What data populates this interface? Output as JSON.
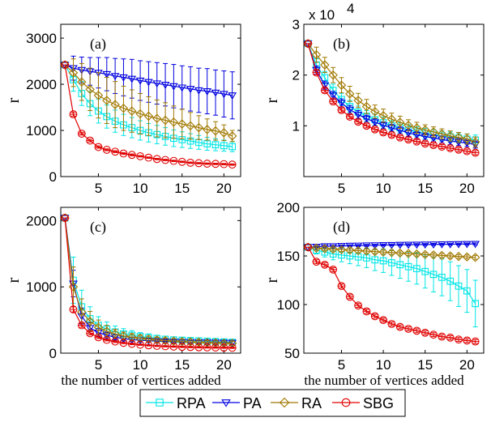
{
  "x_values": [
    1,
    2,
    3,
    4,
    5,
    6,
    7,
    8,
    9,
    10,
    11,
    12,
    13,
    14,
    15,
    16,
    17,
    18,
    19,
    20,
    21
  ],
  "chart_data": [
    {
      "type": "line",
      "panel": "a",
      "label": "(a)",
      "ylabel": "r",
      "xlabel": "",
      "exponent": "",
      "ylim": [
        0,
        3300
      ],
      "yticks": [
        0,
        1000,
        2000,
        3000
      ],
      "ytick_labels": [
        "0",
        "1000",
        "2000",
        "3000"
      ],
      "xlim": [
        0.5,
        22
      ],
      "xticks": [
        5,
        10,
        15,
        20
      ],
      "series": [
        {
          "name": "RPA",
          "color": "#00e5e5",
          "marker": "square",
          "values": [
            2420,
            2100,
            1800,
            1580,
            1420,
            1300,
            1200,
            1120,
            1060,
            1000,
            950,
            910,
            870,
            830,
            800,
            770,
            740,
            710,
            690,
            670,
            650
          ],
          "errors": [
            0,
            250,
            260,
            260,
            260,
            250,
            240,
            230,
            220,
            210,
            200,
            200,
            190,
            180,
            170,
            160,
            150,
            140,
            130,
            120,
            110
          ]
        },
        {
          "name": "PA",
          "color": "#0000e0",
          "marker": "triangle-down",
          "values": [
            2420,
            2350,
            2310,
            2280,
            2250,
            2220,
            2180,
            2150,
            2120,
            2080,
            2050,
            2020,
            1990,
            1960,
            1930,
            1900,
            1870,
            1850,
            1820,
            1790,
            1760
          ],
          "errors": [
            0,
            260,
            280,
            300,
            330,
            360,
            380,
            400,
            420,
            430,
            440,
            450,
            460,
            470,
            470,
            480,
            480,
            490,
            490,
            500,
            510
          ]
        },
        {
          "name": "RA",
          "color": "#a07800",
          "marker": "diamond",
          "values": [
            2420,
            2250,
            2050,
            1890,
            1760,
            1650,
            1560,
            1480,
            1420,
            1360,
            1310,
            1260,
            1220,
            1180,
            1140,
            1100,
            1060,
            1020,
            990,
            950,
            880
          ],
          "errors": [
            0,
            300,
            400,
            460,
            490,
            500,
            500,
            480,
            460,
            440,
            420,
            400,
            380,
            350,
            320,
            290,
            260,
            230,
            200,
            170,
            120
          ]
        },
        {
          "name": "SBG",
          "color": "#e00000",
          "marker": "circle",
          "values": [
            2420,
            1350,
            930,
            780,
            640,
            580,
            540,
            500,
            470,
            440,
            410,
            380,
            360,
            340,
            320,
            300,
            290,
            280,
            275,
            270,
            260
          ],
          "errors": [
            0,
            40,
            30,
            30,
            25,
            20,
            20,
            20,
            20,
            15,
            15,
            15,
            15,
            15,
            15,
            15,
            15,
            15,
            15,
            15,
            15
          ]
        }
      ]
    },
    {
      "type": "line",
      "panel": "b",
      "label": "(b)",
      "ylabel": "r",
      "xlabel": "",
      "exponent": "x 10",
      "exponent_power": "4",
      "ylim": [
        0,
        3
      ],
      "yticks": [
        1,
        2,
        3
      ],
      "ytick_labels": [
        "1",
        "2",
        "3"
      ],
      "xlim": [
        0.5,
        22
      ],
      "xticks": [
        5,
        10,
        15,
        20
      ],
      "series": [
        {
          "name": "RPA",
          "color": "#00e5e5",
          "marker": "square",
          "values": [
            2.62,
            2.2,
            1.95,
            1.7,
            1.52,
            1.38,
            1.27,
            1.19,
            1.12,
            1.06,
            1.0,
            0.96,
            0.92,
            0.88,
            0.85,
            0.82,
            0.8,
            0.78,
            0.76,
            0.74,
            0.72
          ],
          "errors": [
            0,
            0.12,
            0.12,
            0.12,
            0.12,
            0.12,
            0.12,
            0.11,
            0.11,
            0.11,
            0.1,
            0.1,
            0.1,
            0.1,
            0.1,
            0.1,
            0.1,
            0.1,
            0.1,
            0.1,
            0.1
          ]
        },
        {
          "name": "PA",
          "color": "#0000e0",
          "marker": "triangle-down",
          "values": [
            2.62,
            2.1,
            1.8,
            1.6,
            1.45,
            1.32,
            1.22,
            1.14,
            1.07,
            1.01,
            0.96,
            0.91,
            0.86,
            0.82,
            0.79,
            0.76,
            0.73,
            0.7,
            0.68,
            0.66,
            0.63
          ],
          "errors": [
            0,
            0.08,
            0.08,
            0.08,
            0.08,
            0.08,
            0.08,
            0.07,
            0.07,
            0.07,
            0.07,
            0.07,
            0.07,
            0.07,
            0.07,
            0.07,
            0.07,
            0.07,
            0.07,
            0.07,
            0.07
          ]
        },
        {
          "name": "RA",
          "color": "#a07800",
          "marker": "diamond",
          "values": [
            2.62,
            2.4,
            2.2,
            2.0,
            1.8,
            1.63,
            1.5,
            1.38,
            1.28,
            1.2,
            1.13,
            1.07,
            1.01,
            0.96,
            0.92,
            0.88,
            0.84,
            0.8,
            0.77,
            0.74,
            0.68
          ],
          "errors": [
            0,
            0.15,
            0.15,
            0.15,
            0.15,
            0.15,
            0.14,
            0.14,
            0.13,
            0.13,
            0.12,
            0.12,
            0.11,
            0.11,
            0.1,
            0.1,
            0.1,
            0.1,
            0.1,
            0.1,
            0.1
          ]
        },
        {
          "name": "SBG",
          "color": "#e00000",
          "marker": "circle",
          "values": [
            2.62,
            2.05,
            1.7,
            1.48,
            1.31,
            1.18,
            1.08,
            1.0,
            0.93,
            0.87,
            0.82,
            0.77,
            0.73,
            0.69,
            0.65,
            0.62,
            0.59,
            0.56,
            0.53,
            0.5,
            0.47
          ],
          "errors": [
            0,
            0.04,
            0.04,
            0.04,
            0.04,
            0.04,
            0.04,
            0.04,
            0.04,
            0.04,
            0.04,
            0.04,
            0.04,
            0.04,
            0.04,
            0.04,
            0.04,
            0.04,
            0.04,
            0.04,
            0.04
          ]
        }
      ]
    },
    {
      "type": "line",
      "panel": "c",
      "label": "(c)",
      "ylabel": "r",
      "xlabel": "the number of vertices added",
      "exponent": "",
      "ylim": [
        0,
        2200
      ],
      "yticks": [
        0,
        1000,
        2000
      ],
      "ytick_labels": [
        "0",
        "1000",
        "2000"
      ],
      "xlim": [
        0.5,
        22
      ],
      "xticks": [
        5,
        10,
        15,
        20
      ],
      "series": [
        {
          "name": "RPA",
          "color": "#00e5e5",
          "marker": "square",
          "values": [
            2040,
            1100,
            700,
            520,
            420,
            360,
            320,
            290,
            270,
            250,
            235,
            220,
            210,
            200,
            195,
            190,
            185,
            180,
            175,
            170,
            165
          ],
          "errors": [
            0,
            350,
            250,
            180,
            130,
            110,
            90,
            80,
            70,
            60,
            55,
            50,
            45,
            45,
            40,
            40,
            40,
            40,
            40,
            40,
            40
          ]
        },
        {
          "name": "PA",
          "color": "#0000e0",
          "marker": "triangle-down",
          "values": [
            2040,
            1050,
            560,
            380,
            310,
            270,
            240,
            220,
            205,
            195,
            188,
            182,
            177,
            173,
            170,
            167,
            164,
            162,
            160,
            158,
            156
          ],
          "errors": [
            0,
            200,
            120,
            80,
            60,
            50,
            40,
            35,
            30,
            30,
            25,
            25,
            25,
            25,
            25,
            25,
            25,
            25,
            25,
            25,
            25
          ]
        },
        {
          "name": "RA",
          "color": "#a07800",
          "marker": "diamond",
          "values": [
            2040,
            1000,
            620,
            480,
            390,
            330,
            290,
            260,
            240,
            225,
            212,
            200,
            190,
            182,
            175,
            170,
            165,
            160,
            156,
            152,
            148
          ],
          "errors": [
            0,
            300,
            200,
            150,
            110,
            90,
            70,
            60,
            55,
            50,
            45,
            40,
            40,
            35,
            35,
            35,
            35,
            30,
            30,
            30,
            30
          ]
        },
        {
          "name": "SBG",
          "color": "#e00000",
          "marker": "circle",
          "values": [
            2040,
            660,
            420,
            300,
            240,
            200,
            175,
            155,
            140,
            128,
            118,
            110,
            104,
            99,
            95,
            92,
            89,
            87,
            85,
            83,
            81
          ],
          "errors": [
            0,
            40,
            30,
            25,
            20,
            15,
            15,
            12,
            12,
            10,
            10,
            10,
            10,
            10,
            10,
            10,
            10,
            10,
            10,
            10,
            10
          ]
        }
      ]
    },
    {
      "type": "line",
      "panel": "d",
      "label": "(d)",
      "ylabel": "r",
      "xlabel": "the number of vertices added",
      "exponent": "",
      "ylim": [
        50,
        200
      ],
      "yticks": [
        50,
        100,
        150,
        200
      ],
      "ytick_labels": [
        "50",
        "100",
        "150",
        "200"
      ],
      "xlim": [
        0.5,
        22
      ],
      "xticks": [
        5,
        10,
        15,
        20
      ],
      "series": [
        {
          "name": "RPA",
          "color": "#00e5e5",
          "marker": "square",
          "values": [
            159,
            156,
            154,
            152,
            151,
            150,
            149,
            148,
            146,
            145,
            143,
            141,
            139,
            137,
            134,
            131,
            128,
            124,
            119,
            114,
            101
          ],
          "errors": [
            0,
            4,
            5,
            6,
            7,
            8,
            9,
            10,
            11,
            12,
            13,
            14,
            15,
            16,
            17,
            18,
            19,
            20,
            21,
            22,
            24
          ]
        },
        {
          "name": "PA",
          "color": "#0000e0",
          "marker": "triangle-down",
          "values": [
            159,
            159.5,
            160,
            160,
            160.3,
            160.5,
            160.7,
            160.9,
            161,
            161.2,
            161.3,
            161.5,
            161.6,
            161.7,
            161.8,
            161.9,
            162,
            162.1,
            162.2,
            162.3,
            162.4
          ],
          "errors": [
            0,
            1,
            1,
            1,
            1,
            1,
            1,
            1,
            1,
            1,
            1,
            1,
            1,
            1,
            1,
            1,
            1,
            1,
            1,
            1,
            1
          ]
        },
        {
          "name": "RA",
          "color": "#a07800",
          "marker": "diamond",
          "values": [
            159,
            158,
            157.5,
            157,
            156.5,
            156,
            155.5,
            155,
            154.5,
            154,
            153.5,
            153,
            152.5,
            152,
            151.5,
            151,
            150.5,
            150,
            149.5,
            149,
            148.5
          ],
          "errors": [
            0,
            2,
            2,
            2,
            2,
            2,
            2,
            2,
            2,
            2,
            2,
            2,
            2,
            2,
            2,
            2,
            2,
            2,
            2,
            2,
            2
          ]
        },
        {
          "name": "SBG",
          "color": "#e00000",
          "marker": "circle",
          "values": [
            159,
            144,
            141,
            136,
            119,
            108,
            99,
            93,
            88,
            84,
            80,
            77,
            75,
            73,
            71,
            69,
            67,
            66,
            64,
            63,
            62
          ],
          "errors": [
            0,
            2,
            2,
            2,
            2,
            2,
            2,
            2,
            2,
            2,
            2,
            2,
            2,
            2,
            2,
            2,
            2,
            2,
            2,
            2,
            2
          ]
        }
      ]
    }
  ],
  "legend": {
    "items": [
      {
        "name": "RPA",
        "color": "#00e5e5",
        "marker": "square"
      },
      {
        "name": "PA",
        "color": "#0000e0",
        "marker": "triangle-down"
      },
      {
        "name": "RA",
        "color": "#a07800",
        "marker": "diamond"
      },
      {
        "name": "SBG",
        "color": "#e00000",
        "marker": "circle"
      }
    ]
  }
}
